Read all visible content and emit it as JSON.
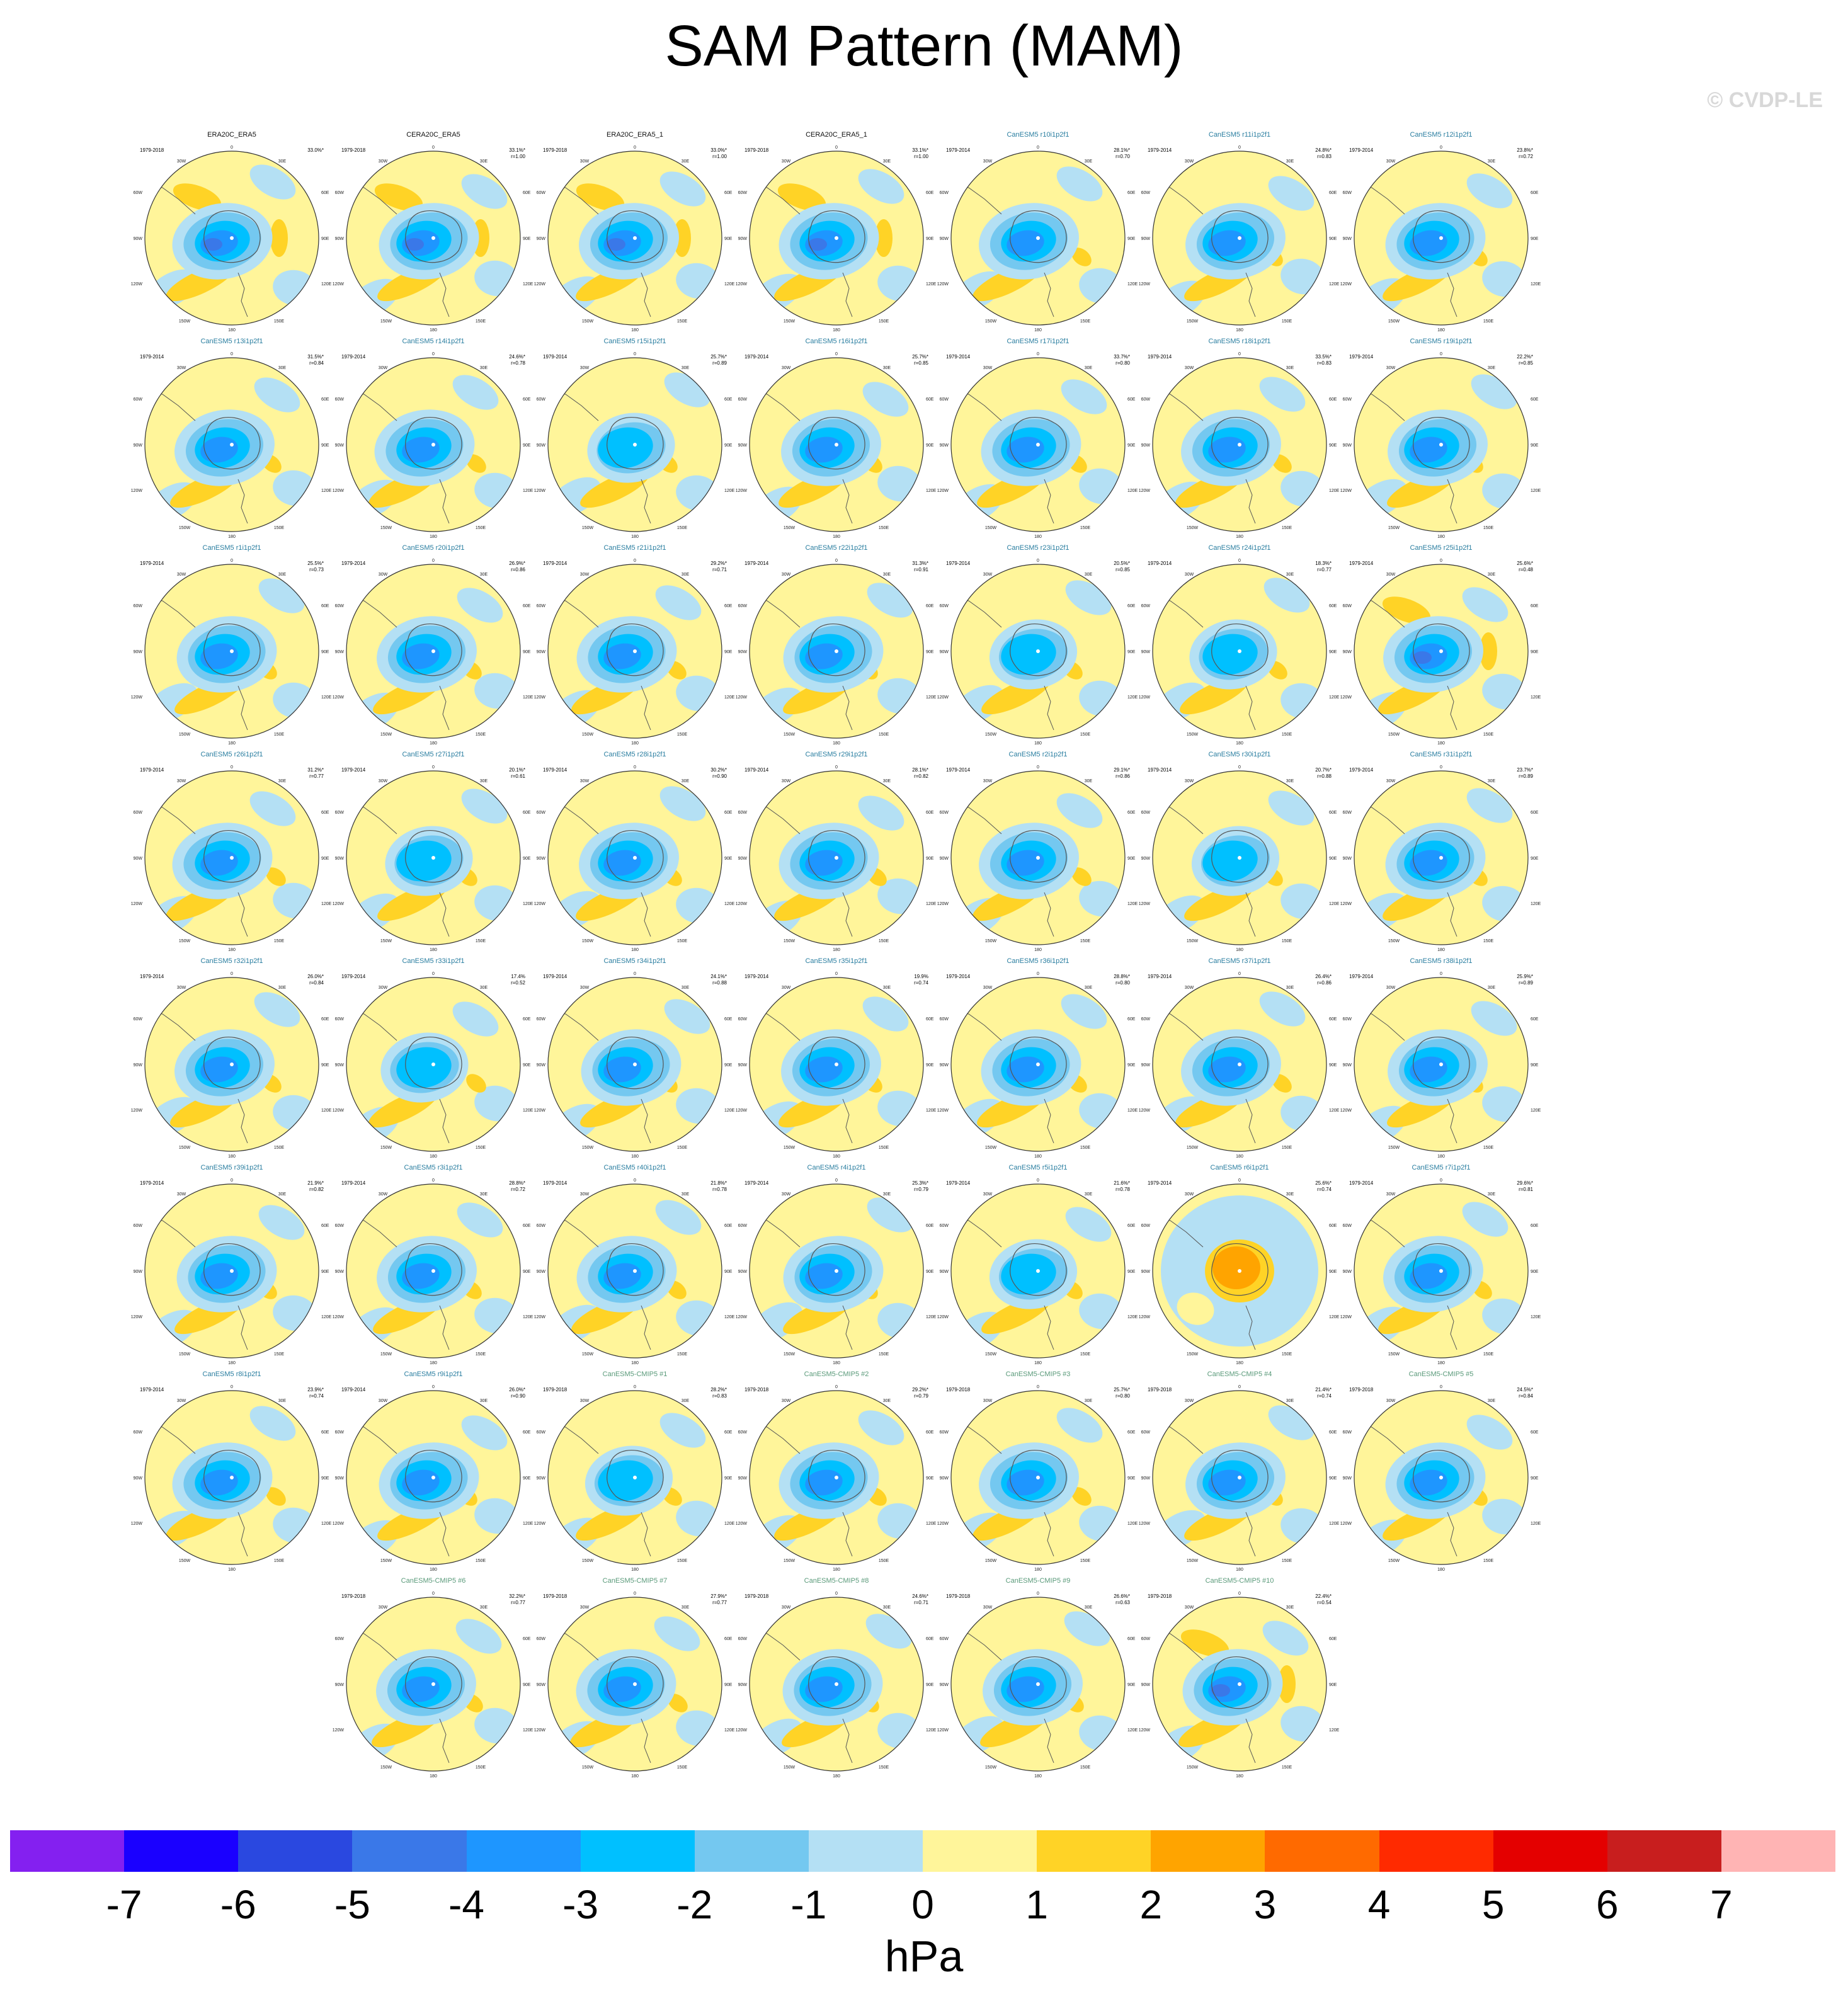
{
  "title": "SAM Pattern (MAM)",
  "credit": "© CVDP-LE",
  "panels": [
    {
      "name": "ERA20C_ERA5",
      "years": "1979-2018",
      "pct": "33.0%*",
      "r": "",
      "kind": "obs",
      "pattern": "dipole"
    },
    {
      "name": "CERA20C_ERA5",
      "years": "1979-2018",
      "pct": "33.1%*",
      "r": "r=1.00",
      "kind": "obs",
      "pattern": "dipole"
    },
    {
      "name": "ERA20C_ERA5_1",
      "years": "1979-2018",
      "pct": "33.0%*",
      "r": "r=1.00",
      "kind": "obs",
      "pattern": "dipole"
    },
    {
      "name": "CERA20C_ERA5_1",
      "years": "1979-2018",
      "pct": "33.1%*",
      "r": "r=1.00",
      "kind": "obs",
      "pattern": "dipole"
    },
    {
      "name": "CanESM5 r10i1p2f1",
      "years": "1979-2014",
      "pct": "28.1%*",
      "r": "r=0.70",
      "kind": "model",
      "pattern": "ring"
    },
    {
      "name": "CanESM5 r11i1p2f1",
      "years": "1979-2014",
      "pct": "24.8%*",
      "r": "r=0.83",
      "kind": "model",
      "pattern": "ring"
    },
    {
      "name": "CanESM5 r12i1p2f1",
      "years": "1979-2014",
      "pct": "23.8%*",
      "r": "r=0.72",
      "kind": "model",
      "pattern": "ring"
    },
    {
      "name": "CanESM5 r13i1p2f1",
      "years": "1979-2014",
      "pct": "31.5%*",
      "r": "r=0.84",
      "kind": "model",
      "pattern": "ring"
    },
    {
      "name": "CanESM5 r14i1p2f1",
      "years": "1979-2014",
      "pct": "24.6%*",
      "r": "r=0.78",
      "kind": "model",
      "pattern": "ring"
    },
    {
      "name": "CanESM5 r15i1p2f1",
      "years": "1979-2014",
      "pct": "25.7%*",
      "r": "r=0.89",
      "kind": "model",
      "pattern": "weak"
    },
    {
      "name": "CanESM5 r16i1p2f1",
      "years": "1979-2014",
      "pct": "25.7%*",
      "r": "r=0.85",
      "kind": "model",
      "pattern": "ring"
    },
    {
      "name": "CanESM5 r17i1p2f1",
      "years": "1979-2014",
      "pct": "33.7%*",
      "r": "r=0.80",
      "kind": "model",
      "pattern": "ring"
    },
    {
      "name": "CanESM5 r18i1p2f1",
      "years": "1979-2014",
      "pct": "33.5%*",
      "r": "r=0.83",
      "kind": "model",
      "pattern": "ring"
    },
    {
      "name": "CanESM5 r19i1p2f1",
      "years": "1979-2014",
      "pct": "22.2%*",
      "r": "r=0.85",
      "kind": "model",
      "pattern": "ring"
    },
    {
      "name": "CanESM5 r1i1p2f1",
      "years": "1979-2014",
      "pct": "25.5%*",
      "r": "r=0.73",
      "kind": "model",
      "pattern": "ring"
    },
    {
      "name": "CanESM5 r20i1p2f1",
      "years": "1979-2014",
      "pct": "26.9%*",
      "r": "r=0.86",
      "kind": "model",
      "pattern": "ring"
    },
    {
      "name": "CanESM5 r21i1p2f1",
      "years": "1979-2014",
      "pct": "29.2%*",
      "r": "r=0.71",
      "kind": "model",
      "pattern": "ring"
    },
    {
      "name": "CanESM5 r22i1p2f1",
      "years": "1979-2014",
      "pct": "31.3%*",
      "r": "r=0.91",
      "kind": "model",
      "pattern": "ring"
    },
    {
      "name": "CanESM5 r23i1p2f1",
      "years": "1979-2014",
      "pct": "20.5%*",
      "r": "r=0.85",
      "kind": "model",
      "pattern": "weak"
    },
    {
      "name": "CanESM5 r24i1p2f1",
      "years": "1979-2014",
      "pct": "18.3%*",
      "r": "r=0.77",
      "kind": "model",
      "pattern": "weak"
    },
    {
      "name": "CanESM5 r25i1p2f1",
      "years": "1979-2014",
      "pct": "25.6%*",
      "r": "r=0.48",
      "kind": "model",
      "pattern": "dipole"
    },
    {
      "name": "CanESM5 r26i1p2f1",
      "years": "1979-2014",
      "pct": "31.2%*",
      "r": "r=0.77",
      "kind": "model",
      "pattern": "ring"
    },
    {
      "name": "CanESM5 r27i1p2f1",
      "years": "1979-2014",
      "pct": "20.1%*",
      "r": "r=0.61",
      "kind": "model",
      "pattern": "weak"
    },
    {
      "name": "CanESM5 r28i1p2f1",
      "years": "1979-2014",
      "pct": "30.2%*",
      "r": "r=0.90",
      "kind": "model",
      "pattern": "ring"
    },
    {
      "name": "CanESM5 r29i1p2f1",
      "years": "1979-2014",
      "pct": "28.1%*",
      "r": "r=0.82",
      "kind": "model",
      "pattern": "ring"
    },
    {
      "name": "CanESM5 r2i1p2f1",
      "years": "1979-2014",
      "pct": "29.1%*",
      "r": "r=0.86",
      "kind": "model",
      "pattern": "ring"
    },
    {
      "name": "CanESM5 r30i1p2f1",
      "years": "1979-2014",
      "pct": "20.7%*",
      "r": "r=0.88",
      "kind": "model",
      "pattern": "weak"
    },
    {
      "name": "CanESM5 r31i1p2f1",
      "years": "1979-2014",
      "pct": "23.7%*",
      "r": "r=0.89",
      "kind": "model",
      "pattern": "ring"
    },
    {
      "name": "CanESM5 r32i1p2f1",
      "years": "1979-2014",
      "pct": "26.0%*",
      "r": "r=0.84",
      "kind": "model",
      "pattern": "ring"
    },
    {
      "name": "CanESM5 r33i1p2f1",
      "years": "1979-2014",
      "pct": "17.4%",
      "r": "r=0.52",
      "kind": "model",
      "pattern": "weak"
    },
    {
      "name": "CanESM5 r34i1p2f1",
      "years": "1979-2014",
      "pct": "24.1%*",
      "r": "r=0.88",
      "kind": "model",
      "pattern": "ring"
    },
    {
      "name": "CanESM5 r35i1p2f1",
      "years": "1979-2014",
      "pct": "19.9%",
      "r": "r=0.74",
      "kind": "model",
      "pattern": "ring"
    },
    {
      "name": "CanESM5 r36i1p2f1",
      "years": "1979-2014",
      "pct": "28.8%*",
      "r": "r=0.80",
      "kind": "model",
      "pattern": "ring"
    },
    {
      "name": "CanESM5 r37i1p2f1",
      "years": "1979-2014",
      "pct": "26.4%*",
      "r": "r=0.86",
      "kind": "model",
      "pattern": "ring"
    },
    {
      "name": "CanESM5 r38i1p2f1",
      "years": "1979-2014",
      "pct": "25.9%*",
      "r": "r=0.89",
      "kind": "model",
      "pattern": "ring"
    },
    {
      "name": "CanESM5 r39i1p2f1",
      "years": "1979-2014",
      "pct": "21.9%*",
      "r": "r=0.82",
      "kind": "model",
      "pattern": "ring"
    },
    {
      "name": "CanESM5 r3i1p2f1",
      "years": "1979-2014",
      "pct": "28.8%*",
      "r": "r=0.72",
      "kind": "model",
      "pattern": "ring"
    },
    {
      "name": "CanESM5 r40i1p2f1",
      "years": "1979-2014",
      "pct": "21.8%*",
      "r": "r=0.78",
      "kind": "model",
      "pattern": "ring"
    },
    {
      "name": "CanESM5 r4i1p2f1",
      "years": "1979-2014",
      "pct": "25.3%*",
      "r": "r=0.79",
      "kind": "model",
      "pattern": "ring"
    },
    {
      "name": "CanESM5 r5i1p2f1",
      "years": "1979-2014",
      "pct": "21.6%*",
      "r": "r=0.78",
      "kind": "model",
      "pattern": "weak"
    },
    {
      "name": "CanESM5 r6i1p2f1",
      "years": "1979-2014",
      "pct": "25.6%*",
      "r": "r=0.74",
      "kind": "model",
      "pattern": "inverted"
    },
    {
      "name": "CanESM5 r7i1p2f1",
      "years": "1979-2014",
      "pct": "29.6%*",
      "r": "r=0.81",
      "kind": "model",
      "pattern": "ring"
    },
    {
      "name": "CanESM5 r8i1p2f1",
      "years": "1979-2014",
      "pct": "23.9%*",
      "r": "r=0.74",
      "kind": "model",
      "pattern": "ring"
    },
    {
      "name": "CanESM5 r9i1p2f1",
      "years": "1979-2014",
      "pct": "26.0%*",
      "r": "r=0.90",
      "kind": "model",
      "pattern": "ring"
    },
    {
      "name": "CanESM5-CMIP5 #1",
      "years": "1979-2018",
      "pct": "28.2%*",
      "r": "r=0.83",
      "kind": "cmip",
      "pattern": "weak"
    },
    {
      "name": "CanESM5-CMIP5 #2",
      "years": "1979-2018",
      "pct": "29.2%*",
      "r": "r=0.79",
      "kind": "cmip",
      "pattern": "ring"
    },
    {
      "name": "CanESM5-CMIP5 #3",
      "years": "1979-2018",
      "pct": "25.7%*",
      "r": "r=0.80",
      "kind": "cmip",
      "pattern": "ring"
    },
    {
      "name": "CanESM5-CMIP5 #4",
      "years": "1979-2018",
      "pct": "21.4%*",
      "r": "r=0.74",
      "kind": "cmip",
      "pattern": "ring"
    },
    {
      "name": "CanESM5-CMIP5 #5",
      "years": "1979-2018",
      "pct": "24.5%*",
      "r": "r=0.84",
      "kind": "cmip",
      "pattern": "ring"
    },
    {
      "name": "CanESM5-CMIP5 #6",
      "years": "1979-2018",
      "pct": "32.2%*",
      "r": "r=0.77",
      "kind": "cmip",
      "pattern": "ring"
    },
    {
      "name": "CanESM5-CMIP5 #7",
      "years": "1979-2018",
      "pct": "27.9%*",
      "r": "r=0.77",
      "kind": "cmip",
      "pattern": "ring"
    },
    {
      "name": "CanESM5-CMIP5 #8",
      "years": "1979-2018",
      "pct": "24.6%*",
      "r": "r=0.71",
      "kind": "cmip",
      "pattern": "ring"
    },
    {
      "name": "CanESM5-CMIP5 #9",
      "years": "1979-2018",
      "pct": "26.6%*",
      "r": "r=0.63",
      "kind": "cmip",
      "pattern": "ring"
    },
    {
      "name": "CanESM5-CMIP5 #10",
      "years": "1979-2018",
      "pct": "22.4%*",
      "r": "r=0.54",
      "kind": "cmip",
      "pattern": "dipole"
    }
  ],
  "map_labels": {
    "top": "0",
    "upper_left": "30W",
    "upper_right": "30E",
    "left_hi": "60W",
    "right_hi": "60E",
    "left": "90W",
    "right": "90E",
    "left_lo": "120W",
    "right_lo": "120E",
    "lower_left": "150W",
    "lower_right": "150E",
    "bottom": "180"
  },
  "colorbar": {
    "colors": [
      "#8420f0",
      "#1a00ff",
      "#2a48e0",
      "#3a78e8",
      "#1e96ff",
      "#00c0ff",
      "#74c8f0",
      "#b4e0f4",
      "#fff59a",
      "#ffd326",
      "#ffa400",
      "#ff6a00",
      "#ff2a00",
      "#e40000",
      "#c81e1e",
      "#ffb4b4"
    ],
    "ticks": [
      "-7",
      "-6",
      "-5",
      "-4",
      "-3",
      "-2",
      "-1",
      "0",
      "1",
      "2",
      "3",
      "4",
      "5",
      "6",
      "7"
    ],
    "units": "hPa"
  },
  "field_colors": {
    "pale_yellow": "#fff59a",
    "yellow": "#ffd326",
    "orange": "#ffa400",
    "pale_blue": "#b4e0f4",
    "light_blue": "#74c8f0",
    "cyan": "#00c0ff",
    "blue": "#1e96ff",
    "dark_blue": "#3a78e8",
    "coast": "#555555"
  }
}
